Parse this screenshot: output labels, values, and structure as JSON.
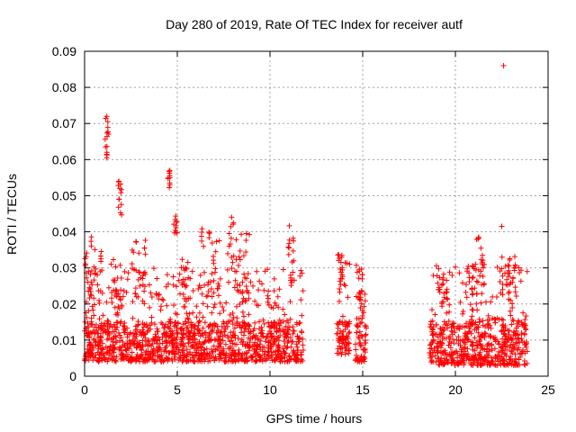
{
  "chart_data": {
    "type": "scatter",
    "title": "Day 280 of 2019, Rate Of TEC Index for receiver autf",
    "xlabel": "GPS time / hours",
    "ylabel": "ROTI / TECUs",
    "xlim": [
      0,
      25
    ],
    "ylim": [
      0,
      0.09
    ],
    "x_ticks": [
      0,
      5,
      10,
      15,
      20,
      25
    ],
    "x_tick_labels": [
      "0",
      "5",
      "10",
      "15",
      "20",
      "25"
    ],
    "y_ticks": [
      0,
      0.01,
      0.02,
      0.03,
      0.04,
      0.05,
      0.06,
      0.07,
      0.08,
      0.09
    ],
    "y_tick_labels": [
      "0",
      "0.01",
      "0.02",
      "0.03",
      "0.04",
      "0.05",
      "0.06",
      "0.07",
      "0.08",
      "0.09"
    ],
    "grid": true,
    "marker": "+",
    "color": "#ff0000",
    "series": [
      {
        "name": "ROTI",
        "segments": [
          {
            "x0": 0.0,
            "x1": 11.8,
            "min": 0.004,
            "typ": 0.011,
            "max": 0.03
          },
          {
            "x0": 13.6,
            "x1": 14.3,
            "min": 0.006,
            "typ": 0.012,
            "max": 0.034
          },
          {
            "x0": 14.6,
            "x1": 15.2,
            "min": 0.004,
            "typ": 0.012,
            "max": 0.031
          },
          {
            "x0": 18.6,
            "x1": 23.9,
            "min": 0.003,
            "typ": 0.011,
            "max": 0.031
          }
        ],
        "clusters": [
          {
            "x0": 0.0,
            "x1": 0.4,
            "y0": 0.02,
            "y1": 0.039
          },
          {
            "x0": 0.3,
            "x1": 1.0,
            "y0": 0.015,
            "y1": 0.036
          },
          {
            "x0": 1.1,
            "x1": 1.3,
            "y0": 0.06,
            "y1": 0.072
          },
          {
            "x0": 1.4,
            "x1": 2.0,
            "y0": 0.015,
            "y1": 0.035
          },
          {
            "x0": 1.8,
            "x1": 2.0,
            "y0": 0.044,
            "y1": 0.054
          },
          {
            "x0": 2.5,
            "x1": 3.3,
            "y0": 0.02,
            "y1": 0.043
          },
          {
            "x0": 4.5,
            "x1": 4.6,
            "y0": 0.052,
            "y1": 0.057
          },
          {
            "x0": 4.8,
            "x1": 5.0,
            "y0": 0.038,
            "y1": 0.045
          },
          {
            "x0": 5.2,
            "x1": 5.6,
            "y0": 0.02,
            "y1": 0.034
          },
          {
            "x0": 6.3,
            "x1": 7.3,
            "y0": 0.02,
            "y1": 0.041
          },
          {
            "x0": 7.7,
            "x1": 8.2,
            "y0": 0.025,
            "y1": 0.045
          },
          {
            "x0": 8.3,
            "x1": 8.9,
            "y0": 0.02,
            "y1": 0.04
          },
          {
            "x0": 10.9,
            "x1": 11.3,
            "y0": 0.025,
            "y1": 0.042
          },
          {
            "x0": 13.7,
            "x1": 14.1,
            "y0": 0.022,
            "y1": 0.034
          },
          {
            "x0": 14.7,
            "x1": 15.0,
            "y0": 0.018,
            "y1": 0.031
          },
          {
            "x0": 19.0,
            "x1": 19.8,
            "y0": 0.018,
            "y1": 0.03
          },
          {
            "x0": 20.5,
            "x1": 21.2,
            "y0": 0.018,
            "y1": 0.033
          },
          {
            "x0": 21.1,
            "x1": 21.5,
            "y0": 0.025,
            "y1": 0.039
          },
          {
            "x0": 22.4,
            "x1": 23.3,
            "y0": 0.02,
            "y1": 0.034
          }
        ],
        "outliers": [
          {
            "x": 22.6,
            "y": 0.086
          },
          {
            "x": 22.5,
            "y": 0.0415
          },
          {
            "x": 1.2,
            "y": 0.072
          },
          {
            "x": 1.25,
            "y": 0.0705
          },
          {
            "x": 1.2,
            "y": 0.0605
          },
          {
            "x": 1.2,
            "y": 0.062
          },
          {
            "x": 4.6,
            "y": 0.057
          },
          {
            "x": 4.6,
            "y": 0.053
          },
          {
            "x": 1.85,
            "y": 0.054
          },
          {
            "x": 1.9,
            "y": 0.052
          }
        ]
      }
    ]
  }
}
